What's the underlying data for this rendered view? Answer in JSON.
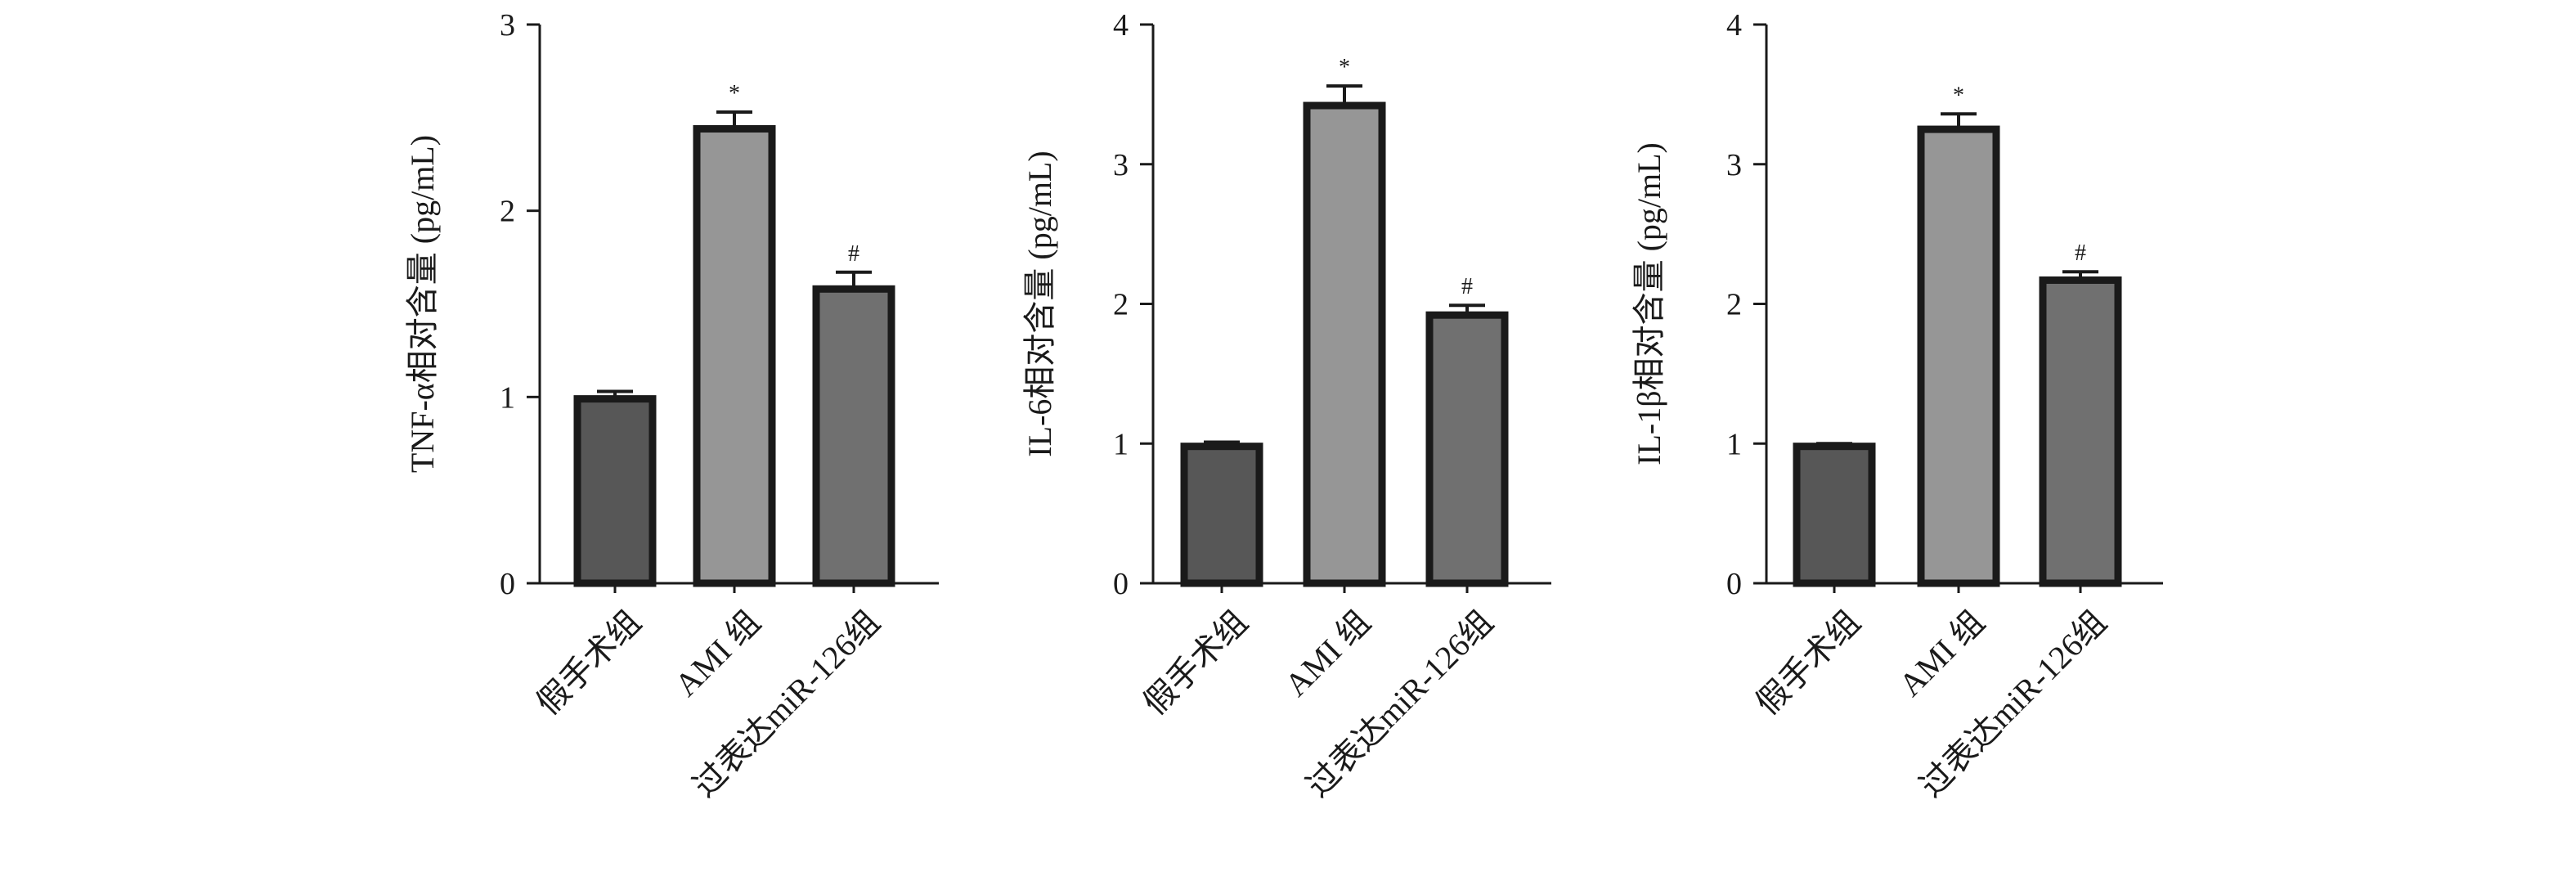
{
  "chart_data": [
    {
      "type": "bar",
      "categories": [
        "假手术组",
        "AMI 组",
        "过表达miR-126组"
      ],
      "values": [
        0.99,
        2.44,
        1.58
      ],
      "errors": [
        0.04,
        0.09,
        0.09
      ],
      "annotations": [
        "",
        "*",
        "#"
      ],
      "ylabel": "TNF-α相对含量 (pg/mL)",
      "xlabel": "",
      "ylim": [
        0,
        3
      ],
      "yticks": [
        "0",
        "1",
        "2",
        "3"
      ],
      "bar_colors": [
        "#575757",
        "#969696",
        "#707070"
      ],
      "grid": false
    },
    {
      "type": "bar",
      "categories": [
        "假手术组",
        "AMI 组",
        "过表达miR-126组"
      ],
      "values": [
        0.98,
        3.42,
        1.92
      ],
      "errors": [
        0.03,
        0.14,
        0.07
      ],
      "annotations": [
        "",
        "*",
        "#"
      ],
      "ylabel": "IL-6相对含量 (pg/mL)",
      "xlabel": "",
      "ylim": [
        0,
        4
      ],
      "yticks": [
        "0",
        "1",
        "2",
        "3",
        "4"
      ],
      "bar_colors": [
        "#575757",
        "#969696",
        "#707070"
      ],
      "grid": false
    },
    {
      "type": "bar",
      "categories": [
        "假手术组",
        "AMI 组",
        "过表达miR-126组"
      ],
      "values": [
        0.98,
        3.25,
        2.17
      ],
      "errors": [
        0.02,
        0.11,
        0.06
      ],
      "annotations": [
        "",
        "*",
        "#"
      ],
      "ylabel": "IL-1β相对含量 (pg/mL)",
      "xlabel": "",
      "ylim": [
        0,
        4
      ],
      "yticks": [
        "0",
        "1",
        "2",
        "3",
        "4"
      ],
      "bar_colors": [
        "#575757",
        "#969696",
        "#707070"
      ],
      "grid": false
    }
  ]
}
